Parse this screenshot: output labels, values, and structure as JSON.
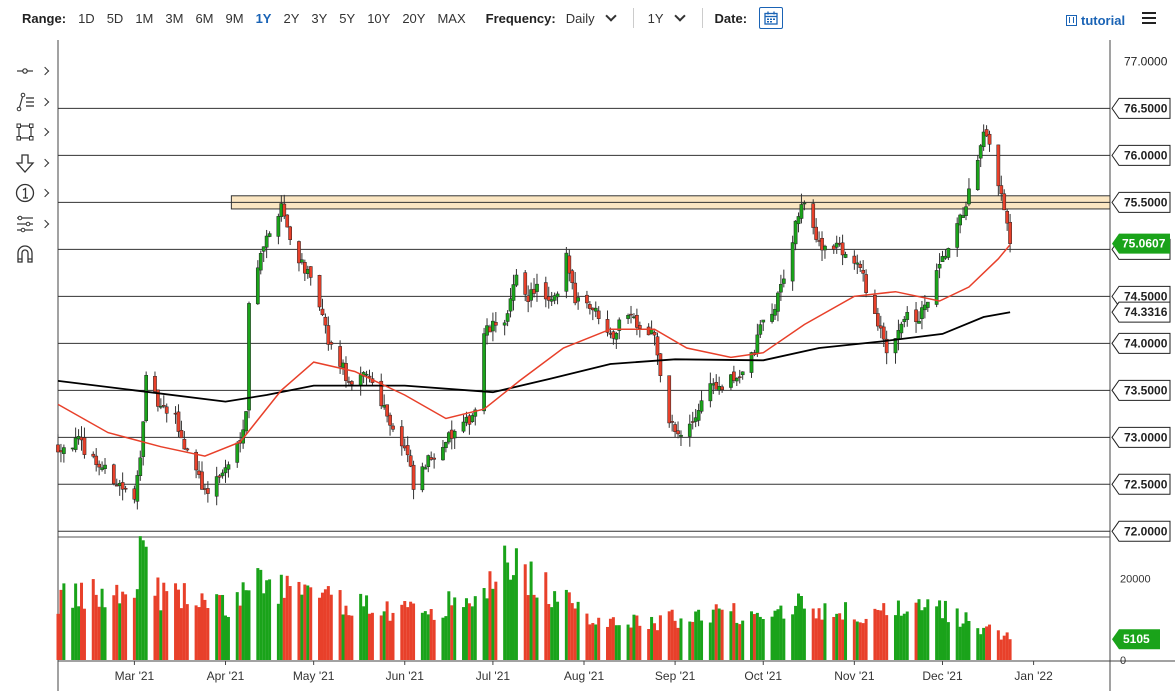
{
  "toolbar": {
    "range_label": "Range:",
    "ranges": [
      "1D",
      "5D",
      "1M",
      "3M",
      "6M",
      "9M",
      "1Y",
      "2Y",
      "3Y",
      "5Y",
      "10Y",
      "20Y",
      "MAX"
    ],
    "active_range": "1Y",
    "frequency_label": "Frequency:",
    "frequency_value": "Daily",
    "period_value": "1Y",
    "date_label": "Date:",
    "tutorial_label": "tutorial"
  },
  "tools": [
    "crosshair-tool-icon",
    "line-tools-icon",
    "shape-tools-icon",
    "arrow-tools-icon",
    "annotation-tools-icon",
    "measure-tools-icon",
    "magnet-tool-icon"
  ],
  "colors": {
    "up": "#1aa31a",
    "down": "#e8402a",
    "ma_short": "#e8402a",
    "ma_long": "#000000",
    "zone_fill": "#fbe6c2",
    "zone_stroke": "#333333",
    "last_price_badge": "#1aa31a",
    "accent": "#1a63b5"
  },
  "chart_data": {
    "type": "candlestick",
    "y_ticks": [
      "77.0000",
      "76.5000",
      "76.0000",
      "75.5000",
      "75.0000",
      "74.5000",
      "74.0000",
      "73.5000",
      "73.0000",
      "72.5000",
      "72.0000"
    ],
    "y_range": [
      71.95,
      77.1
    ],
    "x_ticks": [
      "Mar '21",
      "Apr '21",
      "May '21",
      "Jun '21",
      "Jul '21",
      "Aug '21",
      "Sep '21",
      "Oct '21",
      "Nov '21",
      "Dec '21",
      "Jan '22"
    ],
    "x_tick_dates": [
      "2021-03-01",
      "2021-04-01",
      "2021-05-01",
      "2021-06-01",
      "2021-07-01",
      "2021-08-01",
      "2021-09-01",
      "2021-10-01",
      "2021-11-01",
      "2021-12-01",
      "2022-01-01"
    ],
    "x_range": [
      "2021-02-03",
      "2022-01-27"
    ],
    "horizontal_lines": [
      76.5,
      76.0,
      75.5,
      75.0,
      74.5,
      74.0,
      73.5,
      73.0,
      72.5,
      72.0
    ],
    "resistance_zone": {
      "low": 75.43,
      "high": 75.57,
      "start": "2021-04-03",
      "end": "2022-01-27"
    },
    "close_path": [
      [
        "2021-02-03",
        72.9
      ],
      [
        "2021-02-10",
        72.95
      ],
      [
        "2021-02-17",
        72.7
      ],
      [
        "2021-02-24",
        72.5
      ],
      [
        "2021-03-01",
        72.3
      ],
      [
        "2021-03-03",
        72.85
      ],
      [
        "2021-03-05",
        73.6
      ],
      [
        "2021-03-10",
        73.3
      ],
      [
        "2021-03-15",
        73.2
      ],
      [
        "2021-03-18",
        72.9
      ],
      [
        "2021-03-22",
        72.7
      ],
      [
        "2021-03-25",
        72.4
      ],
      [
        "2021-03-29",
        72.55
      ],
      [
        "2021-04-02",
        72.7
      ],
      [
        "2021-04-06",
        73.0
      ],
      [
        "2021-04-08",
        73.3
      ],
      [
        "2021-04-09",
        74.4
      ],
      [
        "2021-04-13",
        75.0
      ],
      [
        "2021-04-16",
        75.15
      ],
      [
        "2021-04-20",
        75.5
      ],
      [
        "2021-04-23",
        75.1
      ],
      [
        "2021-04-28",
        74.8
      ],
      [
        "2021-05-03",
        74.4
      ],
      [
        "2021-05-06",
        74.0
      ],
      [
        "2021-05-10",
        73.8
      ],
      [
        "2021-05-14",
        73.5
      ],
      [
        "2021-05-19",
        73.7
      ],
      [
        "2021-05-24",
        73.4
      ],
      [
        "2021-05-28",
        73.1
      ],
      [
        "2021-06-02",
        72.8
      ],
      [
        "2021-06-04",
        72.45
      ],
      [
        "2021-06-08",
        72.7
      ],
      [
        "2021-06-14",
        72.95
      ],
      [
        "2021-06-21",
        73.1
      ],
      [
        "2021-06-25",
        73.3
      ],
      [
        "2021-06-28",
        74.1
      ],
      [
        "2021-07-02",
        74.2
      ],
      [
        "2021-07-06",
        74.3
      ],
      [
        "2021-07-09",
        74.7
      ],
      [
        "2021-07-13",
        74.5
      ],
      [
        "2021-07-16",
        74.6
      ],
      [
        "2021-07-20",
        74.4
      ],
      [
        "2021-07-23",
        74.5
      ],
      [
        "2021-07-26",
        74.9
      ],
      [
        "2021-07-29",
        74.5
      ],
      [
        "2021-08-02",
        74.45
      ],
      [
        "2021-08-06",
        74.3
      ],
      [
        "2021-08-11",
        74.1
      ],
      [
        "2021-08-16",
        74.35
      ],
      [
        "2021-08-20",
        74.2
      ],
      [
        "2021-08-25",
        74.1
      ],
      [
        "2021-08-27",
        73.6
      ],
      [
        "2021-08-30",
        73.2
      ],
      [
        "2021-09-02",
        73.0
      ],
      [
        "2021-09-06",
        73.1
      ],
      [
        "2021-09-09",
        73.3
      ],
      [
        "2021-09-13",
        73.6
      ],
      [
        "2021-09-16",
        73.5
      ],
      [
        "2021-09-20",
        73.6
      ],
      [
        "2021-09-24",
        73.7
      ],
      [
        "2021-09-28",
        73.9
      ],
      [
        "2021-09-30",
        74.2
      ],
      [
        "2021-10-04",
        74.3
      ],
      [
        "2021-10-07",
        74.6
      ],
      [
        "2021-10-11",
        75.1
      ],
      [
        "2021-10-14",
        75.5
      ],
      [
        "2021-10-18",
        75.2
      ],
      [
        "2021-10-22",
        75.0
      ],
      [
        "2021-10-26",
        75.05
      ],
      [
        "2021-10-29",
        74.95
      ],
      [
        "2021-11-02",
        74.85
      ],
      [
        "2021-11-05",
        74.6
      ],
      [
        "2021-11-09",
        74.2
      ],
      [
        "2021-11-12",
        73.9
      ],
      [
        "2021-11-15",
        74.1
      ],
      [
        "2021-11-18",
        74.3
      ],
      [
        "2021-11-22",
        74.2
      ],
      [
        "2021-11-26",
        74.45
      ],
      [
        "2021-11-30",
        74.8
      ],
      [
        "2021-12-03",
        75.0
      ],
      [
        "2021-12-07",
        75.3
      ],
      [
        "2021-12-10",
        75.6
      ],
      [
        "2021-12-13",
        75.9
      ],
      [
        "2021-12-15",
        76.2
      ],
      [
        "2021-12-17",
        76.1
      ],
      [
        "2021-12-20",
        75.7
      ],
      [
        "2021-12-22",
        75.4
      ],
      [
        "2021-12-24",
        75.06
      ]
    ],
    "ma_short_path": [
      [
        "2021-02-03",
        73.35
      ],
      [
        "2021-02-20",
        73.05
      ],
      [
        "2021-03-10",
        72.9
      ],
      [
        "2021-03-25",
        72.8
      ],
      [
        "2021-04-06",
        72.95
      ],
      [
        "2021-04-20",
        73.5
      ],
      [
        "2021-05-01",
        73.8
      ],
      [
        "2021-05-15",
        73.7
      ],
      [
        "2021-06-01",
        73.45
      ],
      [
        "2021-06-15",
        73.2
      ],
      [
        "2021-06-28",
        73.3
      ],
      [
        "2021-07-10",
        73.6
      ],
      [
        "2021-07-25",
        73.95
      ],
      [
        "2021-08-10",
        74.15
      ],
      [
        "2021-08-25",
        74.15
      ],
      [
        "2021-09-05",
        73.95
      ],
      [
        "2021-09-20",
        73.85
      ],
      [
        "2021-10-01",
        73.9
      ],
      [
        "2021-10-15",
        74.2
      ],
      [
        "2021-11-01",
        74.5
      ],
      [
        "2021-11-15",
        74.55
      ],
      [
        "2021-11-30",
        74.45
      ],
      [
        "2021-12-10",
        74.6
      ],
      [
        "2021-12-20",
        74.9
      ],
      [
        "2021-12-24",
        75.05
      ]
    ],
    "ma_long_path": [
      [
        "2021-02-03",
        73.6
      ],
      [
        "2021-03-01",
        73.5
      ],
      [
        "2021-04-01",
        73.38
      ],
      [
        "2021-04-15",
        73.45
      ],
      [
        "2021-05-01",
        73.55
      ],
      [
        "2021-06-01",
        73.55
      ],
      [
        "2021-07-01",
        73.48
      ],
      [
        "2021-07-20",
        73.62
      ],
      [
        "2021-08-10",
        73.78
      ],
      [
        "2021-09-01",
        73.83
      ],
      [
        "2021-10-01",
        73.82
      ],
      [
        "2021-10-20",
        73.95
      ],
      [
        "2021-11-10",
        74.02
      ],
      [
        "2021-12-01",
        74.1
      ],
      [
        "2021-12-15",
        74.28
      ],
      [
        "2021-12-24",
        74.3316
      ]
    ],
    "last_price": "75.0607",
    "ma_long_value": "74.3316",
    "volume_ticks": [
      "20000",
      "0"
    ],
    "volume_range": [
      0,
      28000
    ],
    "last_volume": "5105",
    "volume_profile": [
      [
        "2021-02-03",
        15000
      ],
      [
        "2021-03-01",
        17000
      ],
      [
        "2021-03-03",
        28000
      ],
      [
        "2021-03-10",
        16000
      ],
      [
        "2021-03-18",
        15500
      ],
      [
        "2021-04-01",
        13000
      ],
      [
        "2021-04-12",
        19000
      ],
      [
        "2021-04-20",
        18000
      ],
      [
        "2021-05-05",
        15000
      ],
      [
        "2021-06-01",
        12000
      ],
      [
        "2021-06-28",
        15000
      ],
      [
        "2021-07-01",
        22000
      ],
      [
        "2021-07-08",
        24000
      ],
      [
        "2021-07-20",
        17000
      ],
      [
        "2021-08-01",
        11000
      ],
      [
        "2021-08-25",
        9000
      ],
      [
        "2021-09-05",
        11000
      ],
      [
        "2021-10-01",
        12000
      ],
      [
        "2021-10-15",
        14000
      ],
      [
        "2021-11-01",
        11000
      ],
      [
        "2021-12-01",
        12500
      ],
      [
        "2021-12-24",
        5105
      ]
    ]
  }
}
